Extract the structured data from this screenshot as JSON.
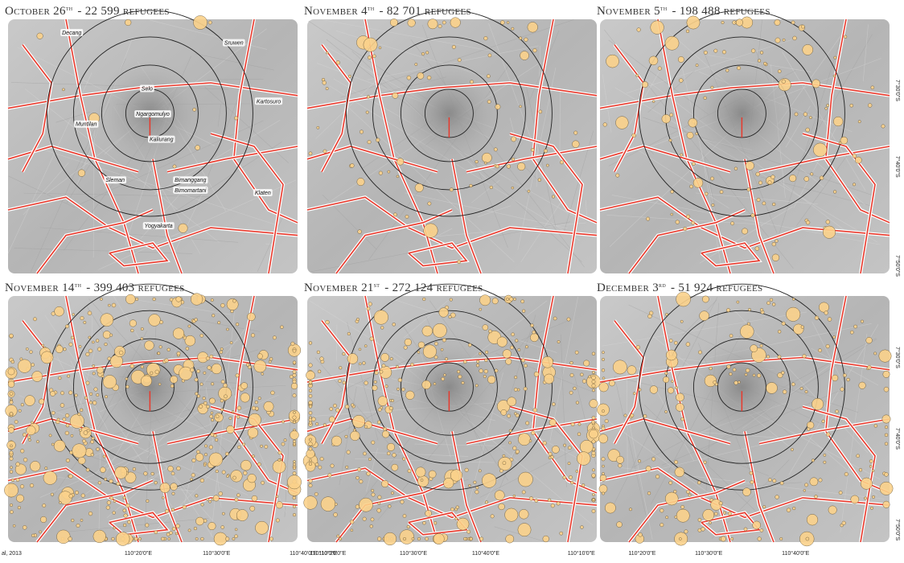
{
  "panels": [
    {
      "date": "October 26",
      "suffix": "th",
      "count": "- 22 599 refugees"
    },
    {
      "date": "November 4",
      "suffix": "th",
      "count": "- 82 701 refugees"
    },
    {
      "date": "November 5",
      "suffix": "th",
      "count": "- 198 488 refugees"
    },
    {
      "date": "November 14",
      "suffix": "th",
      "count": "- 399 403 refugees"
    },
    {
      "date": "November 21",
      "suffix": "st",
      "count": "- 272 124 refugees"
    },
    {
      "date": "December 3",
      "suffix": "rd",
      "count": "- 51 924 refugees"
    }
  ],
  "places": [
    "Decang",
    "Sruwen",
    "Selo",
    "Ngargomulyo",
    "Muntilan",
    "Kaliurang",
    "Kartosuro",
    "Sleman",
    "Bimanggang",
    "Bimomartani",
    "Klaten",
    "Yogyakarta"
  ],
  "lat_labels": [
    "7°30'0\"S",
    "7°40'0\"S",
    "7°50'0\"S"
  ],
  "lon_labels": [
    "110°10'0\"E",
    "110°20'0\"E",
    "110°30'0\"E",
    "110°40'0\"E"
  ],
  "source": "al, 2013"
}
